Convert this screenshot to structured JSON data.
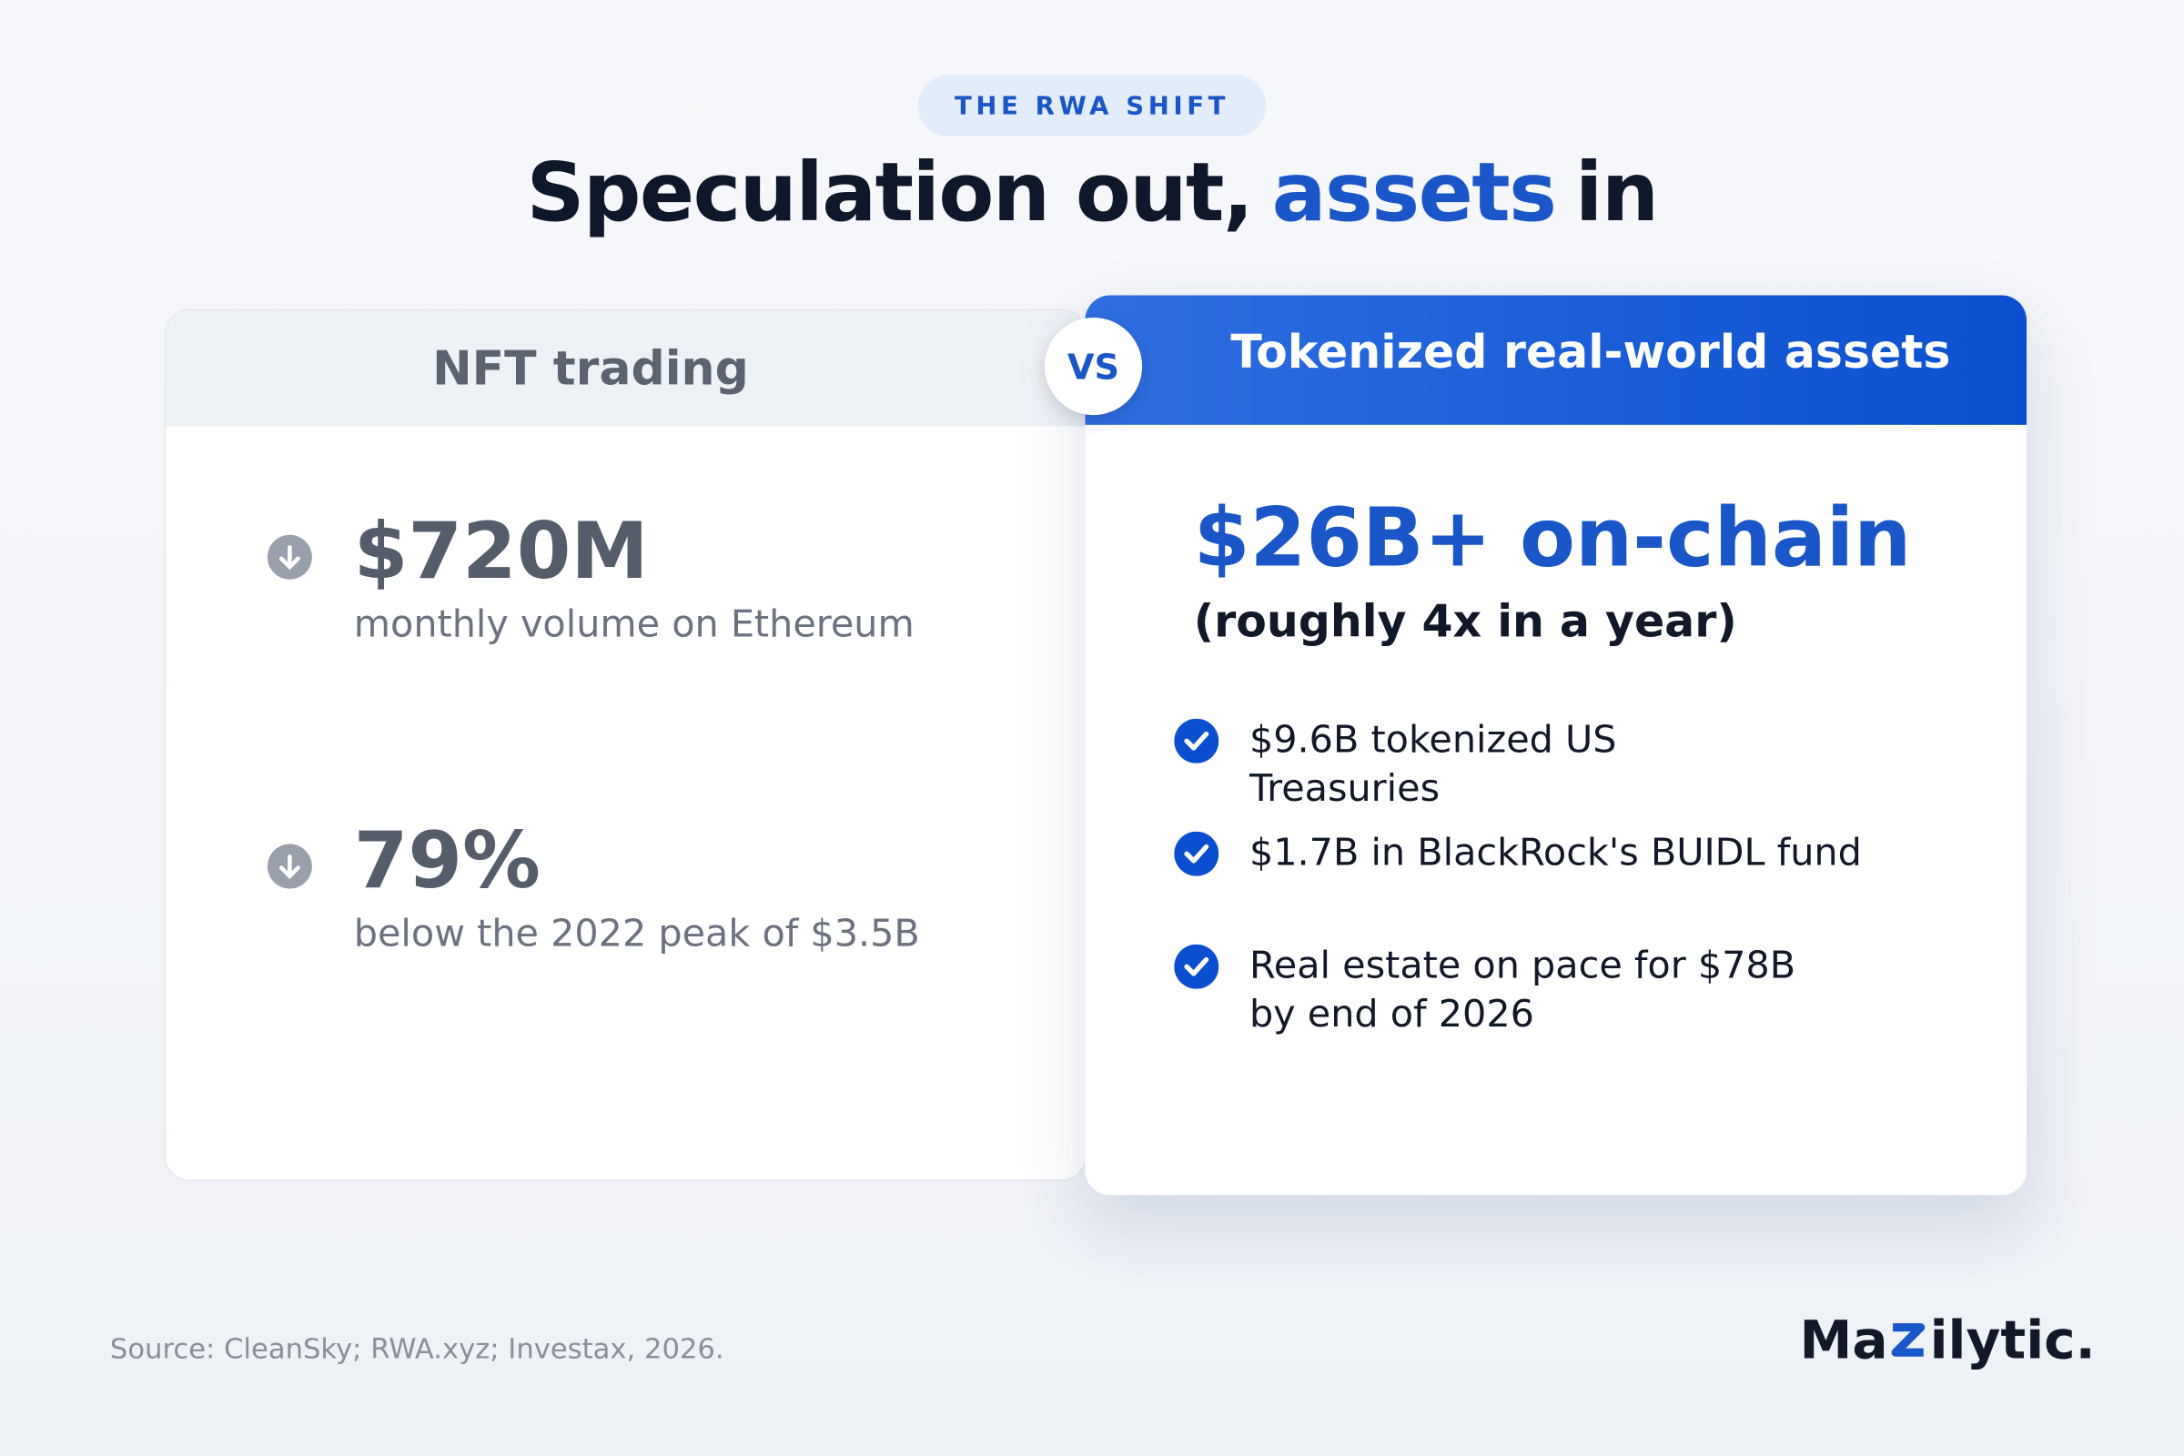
{
  "badge": "THE RWA SHIFT",
  "title": {
    "lead": "Speculation out,",
    "highlight": "assets",
    "tail": "in"
  },
  "left_card": {
    "heading": "NFT trading",
    "stats": [
      {
        "value": "$720M",
        "caption": "monthly volume on Ethereum"
      },
      {
        "value": "79%",
        "caption": "below the 2022 peak of $3.5B"
      }
    ]
  },
  "vs": "VS",
  "right_card": {
    "heading": "Tokenized real-world assets",
    "headline": "$26B+ on-chain",
    "subheadline": "(roughly 4x in a year)",
    "bullets": [
      "$9.6B tokenized US Treasuries",
      "$1.7B in BlackRock's BUIDL fund",
      "Real estate on pace for $78B by end of 2026"
    ]
  },
  "footer": {
    "source": "Source: CleanSky; RWA.xyz; Investax, 2026.",
    "logo_start": "Ma",
    "logo_end": "ilytic."
  }
}
